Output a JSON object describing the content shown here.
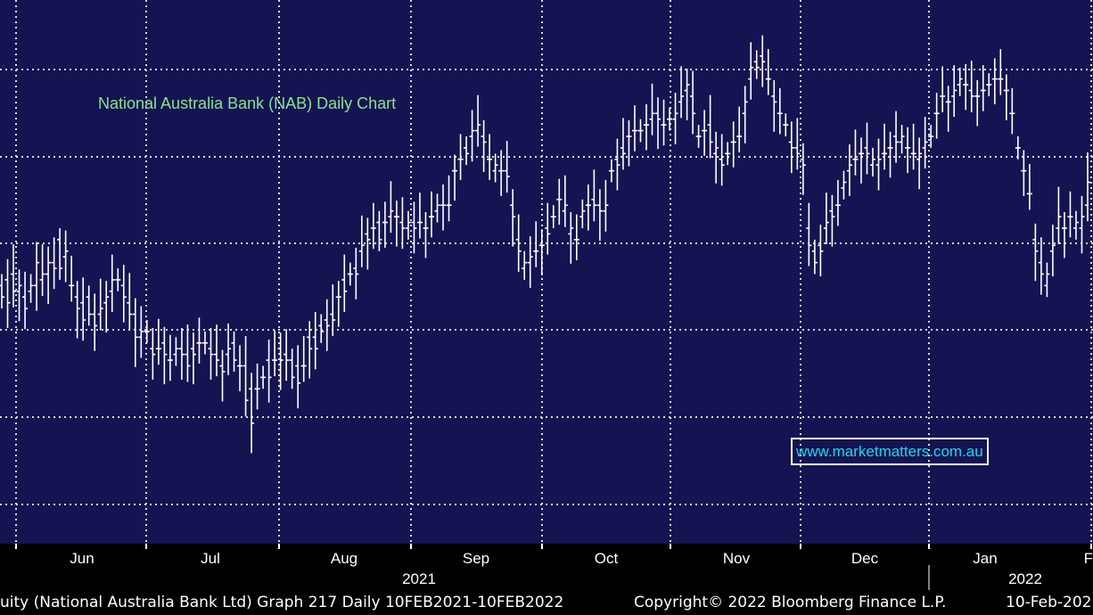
{
  "chart_title": "National Australia Bank (NAB) Daily Chart",
  "watermark": "www.marketmatters.com.au",
  "footer": {
    "left": "uity (National Australia Bank Ltd) Graph 217  Daily 10FEB2021-10FEB2022",
    "center": "Copyright© 2022 Bloomberg Finance L.P.",
    "right": "10-Feb-202"
  },
  "colors": {
    "plot_bg": "#141452",
    "grid": "#d8d8d8",
    "bars": "#ffffff",
    "title": "#8ee08e",
    "watermark_text": "#22d6ee"
  },
  "chart_data": {
    "type": "ohlc",
    "title": "National Australia Bank (NAB) Daily Chart",
    "x_axis": {
      "months": [
        "Jun",
        "Jul",
        "Aug",
        "Sep",
        "Oct",
        "Nov",
        "Dec",
        "Jan",
        "F"
      ],
      "years": [
        "2021",
        "2022"
      ]
    },
    "y_axis": {
      "labels_visible": false,
      "range": [
        0,
        100
      ]
    },
    "grid": true,
    "series": [
      {
        "values_approx": [
          [
            58,
            56
          ],
          [
            59,
            55
          ],
          [
            60,
            57
          ],
          [
            57,
            58
          ],
          [
            56,
            54
          ],
          [
            57,
            58
          ],
          [
            58,
            62
          ],
          [
            59,
            60
          ],
          [
            60,
            62
          ],
          [
            62,
            61
          ],
          [
            66,
            61
          ],
          [
            63,
            64
          ],
          [
            58,
            58
          ],
          [
            56,
            54
          ],
          [
            55,
            52
          ],
          [
            56,
            53
          ],
          [
            53,
            51
          ],
          [
            53,
            54
          ],
          [
            55,
            56
          ],
          [
            57,
            59
          ],
          [
            59,
            59
          ],
          [
            58,
            56
          ],
          [
            55,
            53
          ],
          [
            53,
            49
          ],
          [
            49,
            50
          ],
          [
            50,
            50
          ],
          [
            47,
            46
          ],
          [
            47,
            47
          ],
          [
            48,
            46
          ],
          [
            45,
            45
          ],
          [
            46,
            47
          ],
          [
            47,
            46
          ],
          [
            46,
            44
          ],
          [
            47,
            46
          ],
          [
            48,
            48
          ],
          [
            48,
            48
          ],
          [
            47,
            46
          ],
          [
            46,
            45
          ],
          [
            44,
            43
          ],
          [
            46,
            47
          ],
          [
            48,
            45
          ],
          [
            44,
            44
          ],
          [
            44,
            38
          ],
          [
            40,
            34
          ],
          [
            40,
            40
          ],
          [
            42,
            42
          ],
          [
            45,
            42
          ],
          [
            45,
            45
          ],
          [
            47,
            45
          ],
          [
            46,
            45
          ],
          [
            45,
            42
          ],
          [
            44,
            41
          ],
          [
            44,
            44
          ],
          [
            49,
            47
          ],
          [
            49,
            47
          ],
          [
            51,
            50
          ],
          [
            52,
            51
          ],
          [
            53,
            52
          ],
          [
            56,
            56
          ],
          [
            59,
            57
          ],
          [
            60,
            60
          ],
          [
            61,
            60
          ],
          [
            64,
            65
          ],
          [
            67,
            66
          ],
          [
            68,
            68
          ],
          [
            69,
            66
          ],
          [
            69,
            69
          ],
          [
            70,
            71
          ],
          [
            70,
            70
          ],
          [
            69,
            68
          ],
          [
            68,
            69
          ],
          [
            69,
            68
          ],
          [
            69,
            69
          ],
          [
            68,
            68
          ],
          [
            70,
            70
          ],
          [
            71,
            72
          ],
          [
            72,
            72
          ],
          [
            72,
            72
          ],
          [
            78,
            78
          ],
          [
            80,
            80
          ],
          [
            82,
            81
          ],
          [
            84,
            85
          ],
          [
            85,
            86
          ],
          [
            84,
            83
          ],
          [
            80,
            80
          ],
          [
            78,
            79
          ],
          [
            78,
            78
          ],
          [
            78,
            77
          ],
          [
            72,
            70
          ],
          [
            66,
            64
          ],
          [
            61,
            62
          ],
          [
            62,
            63
          ],
          [
            64,
            64
          ],
          [
            65,
            65
          ],
          [
            68,
            67
          ],
          [
            70,
            70
          ],
          [
            73,
            73
          ],
          [
            71,
            72
          ],
          [
            67,
            68
          ],
          [
            66,
            66
          ],
          [
            70,
            71
          ],
          [
            72,
            72
          ],
          [
            73,
            72
          ],
          [
            72,
            71
          ],
          [
            71,
            72
          ],
          [
            78,
            78
          ],
          [
            80,
            79
          ],
          [
            82,
            81
          ],
          [
            84,
            84
          ],
          [
            85,
            85
          ],
          [
            85,
            85
          ],
          [
            86,
            86
          ],
          [
            87,
            88
          ],
          [
            88,
            87
          ],
          [
            86,
            86
          ],
          [
            87,
            87
          ],
          [
            87,
            88
          ],
          [
            90,
            91
          ],
          [
            92,
            93
          ],
          [
            91,
            88
          ],
          [
            84,
            84
          ],
          [
            85,
            85
          ],
          [
            86,
            83
          ],
          [
            81,
            82
          ],
          [
            80,
            79
          ],
          [
            81,
            81
          ],
          [
            83,
            83
          ],
          [
            84,
            84
          ],
          [
            88,
            90
          ],
          [
            94,
            96
          ],
          [
            97,
            96
          ],
          [
            98,
            97
          ],
          [
            94,
            94
          ],
          [
            91,
            90
          ],
          [
            88,
            88
          ],
          [
            86,
            86
          ],
          [
            83,
            82
          ],
          [
            82,
            81
          ],
          [
            80,
            79
          ],
          [
            68,
            65
          ],
          [
            64,
            62
          ],
          [
            65,
            64
          ],
          [
            68,
            69
          ],
          [
            71,
            70
          ],
          [
            72,
            72
          ],
          [
            75,
            76
          ],
          [
            78,
            79
          ],
          [
            80,
            80
          ],
          [
            81,
            81
          ],
          [
            82,
            81
          ],
          [
            79,
            80
          ],
          [
            79,
            80
          ],
          [
            81,
            81
          ],
          [
            82,
            82
          ],
          [
            84,
            83
          ],
          [
            83,
            84
          ],
          [
            82,
            82
          ],
          [
            81,
            81
          ],
          [
            80,
            81
          ],
          [
            82,
            83
          ],
          [
            84,
            84
          ],
          [
            88,
            88
          ],
          [
            91,
            91
          ],
          [
            90,
            90
          ],
          [
            91,
            92
          ],
          [
            93,
            94
          ],
          [
            93,
            93
          ],
          [
            92,
            91
          ],
          [
            91,
            91
          ],
          [
            92,
            92
          ],
          [
            93,
            93
          ],
          [
            94,
            94
          ],
          [
            94,
            94
          ],
          [
            92,
            92
          ],
          [
            88,
            88
          ],
          [
            82,
            82
          ],
          [
            78,
            78
          ],
          [
            74,
            74
          ],
          [
            66,
            64
          ],
          [
            62,
            60
          ],
          [
            58,
            60
          ],
          [
            64,
            65
          ],
          [
            68,
            70
          ],
          [
            68,
            68
          ],
          [
            70,
            70
          ],
          [
            68,
            69
          ],
          [
            68,
            70
          ],
          [
            72,
            76
          ]
        ]
      }
    ]
  }
}
